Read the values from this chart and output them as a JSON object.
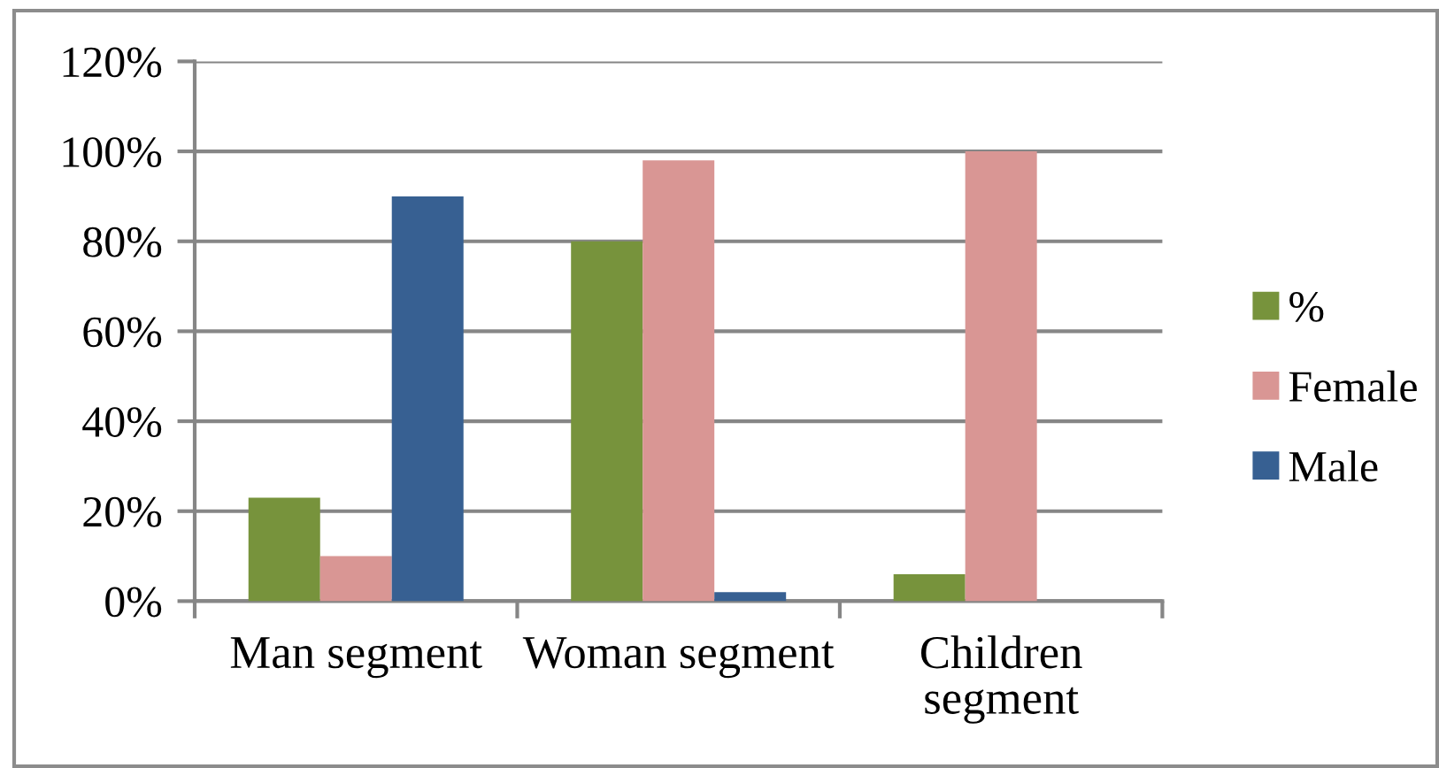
{
  "chart_data": {
    "type": "bar",
    "categories": [
      "Man segment",
      "Woman segment",
      "Children segment"
    ],
    "series": [
      {
        "name": "%",
        "color": "#77933c",
        "values": [
          23,
          80,
          6
        ]
      },
      {
        "name": "Female",
        "color": "#d99694",
        "values": [
          10,
          98,
          100
        ]
      },
      {
        "name": "Male",
        "color": "#376092",
        "values": [
          90,
          2,
          null
        ]
      }
    ],
    "ylim": [
      0,
      120
    ],
    "yticks": [
      {
        "value": 0,
        "label": "0%"
      },
      {
        "value": 20,
        "label": "20%"
      },
      {
        "value": 40,
        "label": "40%"
      },
      {
        "value": 60,
        "label": "60%"
      },
      {
        "value": 80,
        "label": "80%"
      },
      {
        "value": 100,
        "label": "100%"
      },
      {
        "value": 120,
        "label": "120%"
      }
    ],
    "grid": "y",
    "legend": "right"
  }
}
